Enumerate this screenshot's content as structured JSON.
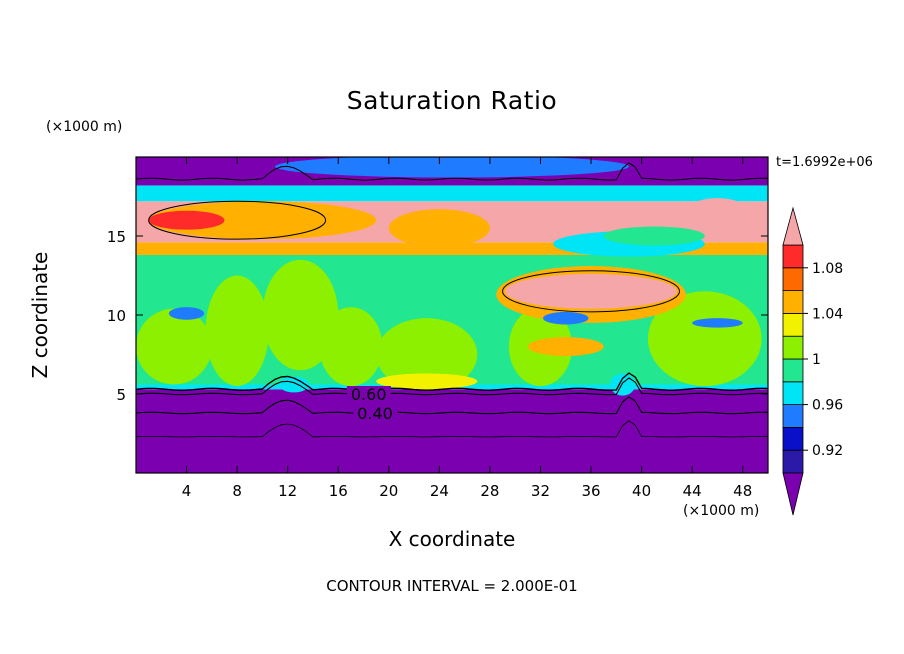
{
  "chart_data": {
    "type": "heatmap",
    "title": "Saturation Ratio",
    "xlabel": "X coordinate",
    "ylabel": "Z coordinate",
    "x_units": "(×1000 m)",
    "z_units": "(×1000 m)",
    "timestamp": "t=1.6992e+06",
    "contour_note": "CONTOUR INTERVAL = 2.000E-01",
    "xlim": [
      0,
      50
    ],
    "ylim": [
      0,
      20
    ],
    "x_ticks": [
      4,
      8,
      12,
      16,
      20,
      24,
      28,
      32,
      36,
      40,
      44,
      48
    ],
    "y_ticks": [
      5,
      10,
      15
    ],
    "colorbar": {
      "labels": [
        "1.08",
        "1.04",
        "1",
        "0.96",
        "0.92"
      ],
      "label_values": [
        1.08,
        1.04,
        1.0,
        0.96,
        0.92
      ],
      "levels": [
        0.9,
        0.92,
        0.94,
        0.96,
        0.98,
        1.0,
        1.02,
        1.04,
        1.06,
        1.08,
        1.1
      ],
      "colors": [
        "#7b00b0",
        "#2b1aa8",
        "#0a10c8",
        "#1f7bff",
        "#00e5f5",
        "#22e690",
        "#8cf000",
        "#f2f200",
        "#ffb000",
        "#ff6a00",
        "#ff2a2a",
        "#f5a6a8"
      ],
      "extend": "both"
    },
    "contour_lines": [
      {
        "label": "0.60",
        "z_approx": 5.0
      },
      {
        "label": "0.40",
        "z_approx": 3.8
      }
    ],
    "regions": [
      {
        "zmin": 0,
        "zmax": 5.3,
        "color": "#7b00b0"
      },
      {
        "zmin": 5.3,
        "zmax": 5.6,
        "color": "#00e5f5"
      },
      {
        "zmin": 5.6,
        "zmax": 13.8,
        "color": "#22e690"
      },
      {
        "zmin": 13.8,
        "zmax": 14.6,
        "color": "#ffb000"
      },
      {
        "zmin": 14.6,
        "zmax": 17.2,
        "color": "#f5a6a8"
      },
      {
        "zmin": 17.2,
        "zmax": 18.2,
        "color": "#00e5f5"
      },
      {
        "zmin": 18.2,
        "zmax": 20,
        "color": "#7b00b0"
      }
    ]
  }
}
